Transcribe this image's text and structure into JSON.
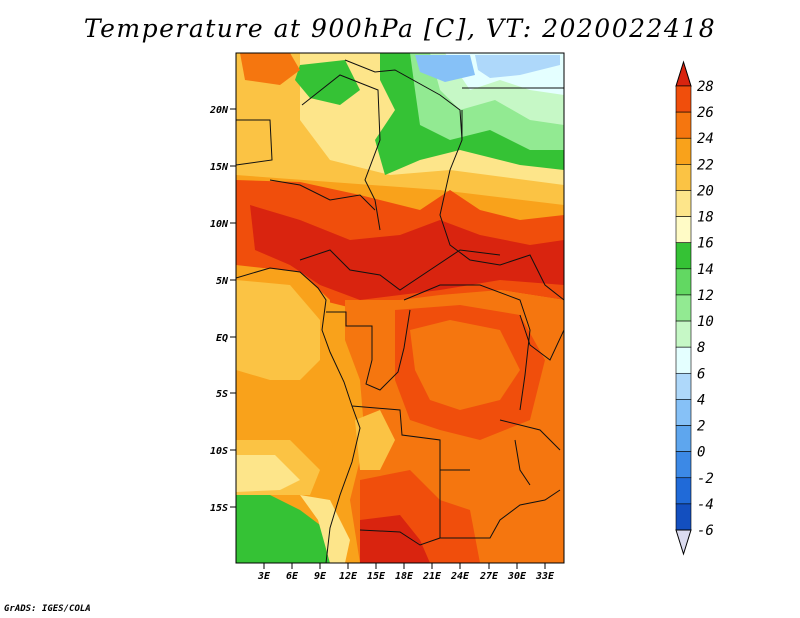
{
  "title": "Temperature at 900hPa [C], VT: 2020022418",
  "credit": "GrADS: IGES/COLA",
  "map": {
    "lat_labels": [
      "20N",
      "15N",
      "10N",
      "5N",
      "EQ",
      "5S",
      "10S",
      "15S"
    ],
    "lon_labels": [
      "3E",
      "6E",
      "9E",
      "12E",
      "15E",
      "18E",
      "21E",
      "24E",
      "27E",
      "30E",
      "33E"
    ]
  },
  "colorbar": {
    "labels": [
      "28",
      "26",
      "24",
      "22",
      "20",
      "18",
      "16",
      "14",
      "12",
      "10",
      "8",
      "6",
      "4",
      "2",
      "0",
      "-2",
      "-4",
      "-6"
    ],
    "colors": [
      "#d9240f",
      "#f04e0c",
      "#f5760f",
      "#f9a21b",
      "#fbc344",
      "#fde58a",
      "#fffbc6",
      "#35c235",
      "#62d862",
      "#92ea92",
      "#c6f8c6",
      "#e4ffff",
      "#aed8fa",
      "#86c1f7",
      "#5ea6ee",
      "#3c89e6",
      "#206ad8",
      "#134fbf",
      "#0c3aa3",
      "#061b6b",
      "#dcdcf0"
    ]
  }
}
